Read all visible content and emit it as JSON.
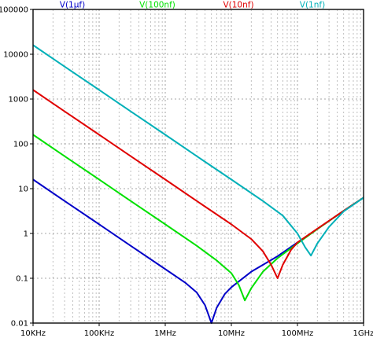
{
  "chart_data": {
    "type": "line",
    "title": "",
    "xlabel": "",
    "ylabel": "",
    "xscale": "log",
    "yscale": "log",
    "xlim": [
      10000,
      1000000000
    ],
    "ylim": [
      0.01,
      100000
    ],
    "grid": true,
    "legend_placement": "top",
    "x_tick_labels": [
      "10KHz",
      "100KHz",
      "1MHz",
      "10MHz",
      "100MHz",
      "1GHz"
    ],
    "y_tick_labels": [
      "100000",
      "10000",
      "1000",
      "100",
      "10",
      "1",
      "0.1",
      "0.01"
    ],
    "x_tick_values": [
      10000,
      100000,
      1000000,
      10000000,
      100000000,
      1000000000
    ],
    "y_tick_values": [
      100000,
      10000,
      1000,
      100,
      10,
      1,
      0.1,
      0.01
    ],
    "series": [
      {
        "name": "V(1µf)",
        "color": "#0000c8",
        "x": [
          10000,
          30000,
          100000,
          300000,
          1000000,
          2000000,
          3000000,
          4000000,
          5000000,
          6000000,
          8000000,
          10000000,
          20000000,
          50000000,
          100000000,
          200000000,
          500000000,
          1000000000
        ],
        "y": [
          16,
          5.3,
          1.6,
          0.53,
          0.16,
          0.08,
          0.048,
          0.025,
          0.01,
          0.022,
          0.045,
          0.063,
          0.14,
          0.31,
          0.63,
          1.26,
          3.2,
          6.3
        ]
      },
      {
        "name": "V(100nf)",
        "color": "#00e000",
        "x": [
          10000,
          30000,
          100000,
          300000,
          1000000,
          3000000,
          6000000,
          10000000,
          13000000,
          16000000,
          20000000,
          30000000,
          50000000,
          100000000,
          200000000,
          500000000,
          1000000000
        ],
        "y": [
          160,
          53,
          16,
          5.3,
          1.6,
          0.53,
          0.25,
          0.13,
          0.07,
          0.032,
          0.06,
          0.14,
          0.28,
          0.6,
          1.25,
          3.2,
          6.3
        ]
      },
      {
        "name": "V(10nf)",
        "color": "#e00000",
        "x": [
          10000,
          30000,
          100000,
          300000,
          1000000,
          3000000,
          10000000,
          20000000,
          30000000,
          40000000,
          50000000,
          60000000,
          80000000,
          100000000,
          200000000,
          500000000,
          1000000000
        ],
        "y": [
          1600,
          530,
          160,
          53,
          16,
          5.3,
          1.6,
          0.75,
          0.4,
          0.2,
          0.1,
          0.2,
          0.43,
          0.63,
          1.28,
          3.2,
          6.3
        ]
      },
      {
        "name": "V(1nf)",
        "color": "#00b0b8",
        "x": [
          10000,
          30000,
          100000,
          300000,
          1000000,
          3000000,
          10000000,
          30000000,
          60000000,
          100000000,
          130000000,
          160000000,
          200000000,
          300000000,
          500000000,
          1000000000
        ],
        "y": [
          16000,
          5300,
          1600,
          530,
          160,
          53,
          16,
          5.3,
          2.5,
          1.0,
          0.5,
          0.32,
          0.6,
          1.4,
          3.1,
          6.3
        ]
      }
    ]
  }
}
